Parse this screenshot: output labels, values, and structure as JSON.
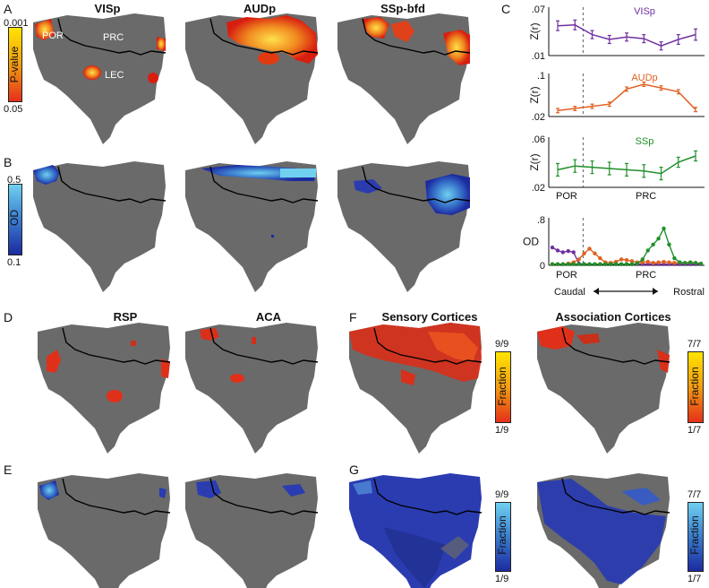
{
  "panels": {
    "A": "A",
    "B": "B",
    "C": "C",
    "D": "D",
    "E": "E",
    "F": "F",
    "G": "G"
  },
  "titles": {
    "visp": "VISp",
    "audp": "AUDp",
    "ssp_bfd": "SSp-bfd",
    "rsp": "RSP",
    "aca": "ACA",
    "sensory": "Sensory Cortices",
    "association": "Association Cortices"
  },
  "region_labels": {
    "por": "POR",
    "prc": "PRC",
    "lec": "LEC"
  },
  "colorbars": {
    "pvalue": {
      "label": "P-value",
      "top": "0.001",
      "bottom": "0.05"
    },
    "od": {
      "label": "OD",
      "top": "0.5",
      "bottom": "0.1"
    },
    "fraction_sensory_red": {
      "label": "Fraction",
      "top": "9/9",
      "bottom": "1/9"
    },
    "fraction_assoc_red": {
      "label": "Fraction",
      "top": "7/7",
      "bottom": "1/7"
    },
    "fraction_sensory_blue": {
      "label": "Fraction",
      "top": "9/9",
      "bottom": "1/9"
    },
    "fraction_assoc_blue": {
      "label": "Fraction",
      "top": "7/7",
      "bottom": "1/7"
    }
  },
  "colors": {
    "visp": "#7030a0",
    "audp": "#e06020",
    "ssp": "#20902a",
    "cortex": "#6a6a6a"
  },
  "chart_data": [
    {
      "type": "line",
      "title": "VISp",
      "ylabel": "Z(r)",
      "ylim": [
        0.01,
        0.07
      ],
      "yticks": [
        ".07",
        ".01"
      ],
      "x": [
        1,
        2,
        3,
        4,
        5,
        6,
        7,
        8,
        9
      ],
      "values": [
        0.047,
        0.048,
        0.036,
        0.03,
        0.033,
        0.031,
        0.022,
        0.03,
        0.036
      ],
      "errors": [
        0.006,
        0.006,
        0.005,
        0.005,
        0.005,
        0.005,
        0.005,
        0.006,
        0.007
      ]
    },
    {
      "type": "line",
      "title": "AUDp",
      "ylabel": "Z(r)",
      "ylim": [
        0.02,
        0.1
      ],
      "yticks": [
        ".1",
        ".02"
      ],
      "x": [
        1,
        2,
        3,
        4,
        5,
        6,
        7,
        8,
        9
      ],
      "values": [
        0.031,
        0.035,
        0.039,
        0.043,
        0.071,
        0.08,
        0.073,
        0.066,
        0.033
      ],
      "errors": [
        0.004,
        0.004,
        0.004,
        0.004,
        0.004,
        0.004,
        0.004,
        0.004,
        0.004
      ]
    },
    {
      "type": "line",
      "title": "SSp",
      "ylabel": "Z(r)",
      "ylim": [
        0.02,
        0.06
      ],
      "yticks": [
        ".06",
        ".02"
      ],
      "x": [
        1,
        2,
        3,
        4,
        5,
        6,
        7,
        8,
        9
      ],
      "values": [
        0.034,
        0.037,
        0.036,
        0.035,
        0.034,
        0.033,
        0.031,
        0.04,
        0.045
      ],
      "errors": [
        0.005,
        0.005,
        0.005,
        0.005,
        0.005,
        0.005,
        0.005,
        0.004,
        0.004
      ]
    },
    {
      "type": "line",
      "title": "",
      "ylabel": "OD",
      "ylim": [
        0,
        0.8
      ],
      "yticks": [
        ".8",
        "0"
      ],
      "xlabels": [
        "POR",
        "PRC"
      ],
      "axis_left": "Caudal",
      "axis_right": "Rostral",
      "series": [
        {
          "name": "VISp",
          "values": [
            0.3,
            0.25,
            0.22,
            0.24,
            0.22,
            0.03,
            0.02,
            0.02,
            0.02,
            0.02,
            0.02,
            0.02,
            0.02,
            0.02,
            0.02,
            0.02,
            0.02,
            0.02,
            0.02,
            0.02,
            0.02,
            0.02,
            0.02,
            0.02,
            0.02,
            0.02,
            0.02,
            0.02,
            0.02
          ]
        },
        {
          "name": "AUDp",
          "values": [
            0.02,
            0.02,
            0.02,
            0.03,
            0.05,
            0.1,
            0.2,
            0.28,
            0.2,
            0.12,
            0.05,
            0.04,
            0.06,
            0.1,
            0.09,
            0.07,
            0.05,
            0.05,
            0.06,
            0.04,
            0.05,
            0.06,
            0.05,
            0.04,
            0.05,
            0.04,
            0.05,
            0.04,
            0.03
          ]
        },
        {
          "name": "SSp",
          "values": [
            0.02,
            0.02,
            0.02,
            0.02,
            0.02,
            0.02,
            0.02,
            0.02,
            0.02,
            0.02,
            0.02,
            0.02,
            0.02,
            0.02,
            0.02,
            0.02,
            0.03,
            0.1,
            0.25,
            0.35,
            0.45,
            0.62,
            0.35,
            0.12,
            0.05,
            0.04,
            0.05,
            0.04,
            0.03
          ]
        }
      ]
    }
  ]
}
